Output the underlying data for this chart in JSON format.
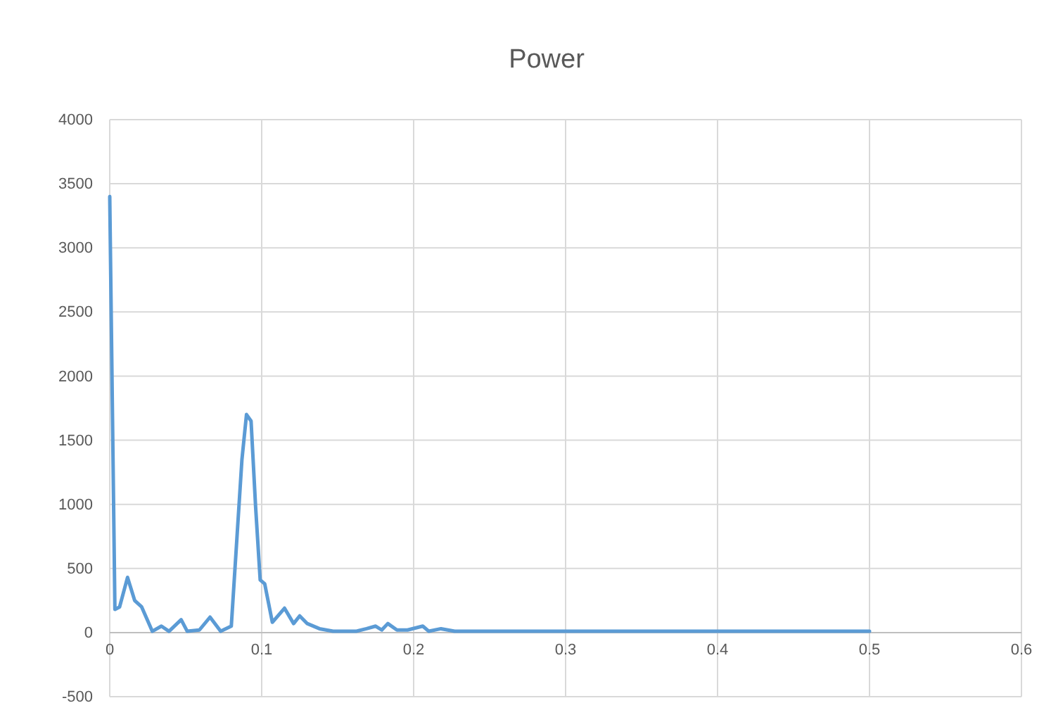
{
  "chart_data": {
    "type": "line",
    "title": "Power",
    "x": [
      0,
      0.0034,
      0.0065,
      0.0117,
      0.0164,
      0.021,
      0.028,
      0.034,
      0.039,
      0.047,
      0.051,
      0.059,
      0.066,
      0.073,
      0.08,
      0.087,
      0.09,
      0.093,
      0.096,
      0.099,
      0.102,
      0.107,
      0.115,
      0.121,
      0.125,
      0.13,
      0.138,
      0.147,
      0.162,
      0.169,
      0.175,
      0.179,
      0.183,
      0.189,
      0.196,
      0.206,
      0.21,
      0.218,
      0.227,
      0.25,
      0.3,
      0.35,
      0.4,
      0.45,
      0.5
    ],
    "series": [
      {
        "color": "#5b9bd5",
        "values": [
          3400,
          180,
          200,
          430,
          250,
          200,
          10,
          50,
          10,
          100,
          10,
          20,
          120,
          10,
          50,
          1350,
          1700,
          1650,
          980,
          410,
          380,
          80,
          190,
          70,
          130,
          70,
          30,
          10,
          10,
          30,
          50,
          20,
          70,
          20,
          20,
          50,
          10,
          30,
          10,
          10,
          10,
          10,
          10,
          10,
          10
        ]
      }
    ],
    "xlim": [
      0,
      0.6
    ],
    "xticks": [
      0,
      0.1,
      0.2,
      0.3,
      0.4,
      0.5,
      0.6
    ],
    "ylim": [
      -500,
      4000
    ],
    "yticks": [
      -500,
      0,
      500,
      1000,
      1500,
      2000,
      2500,
      3000,
      3500,
      4000
    ],
    "grid": true,
    "line_style": "solid"
  }
}
